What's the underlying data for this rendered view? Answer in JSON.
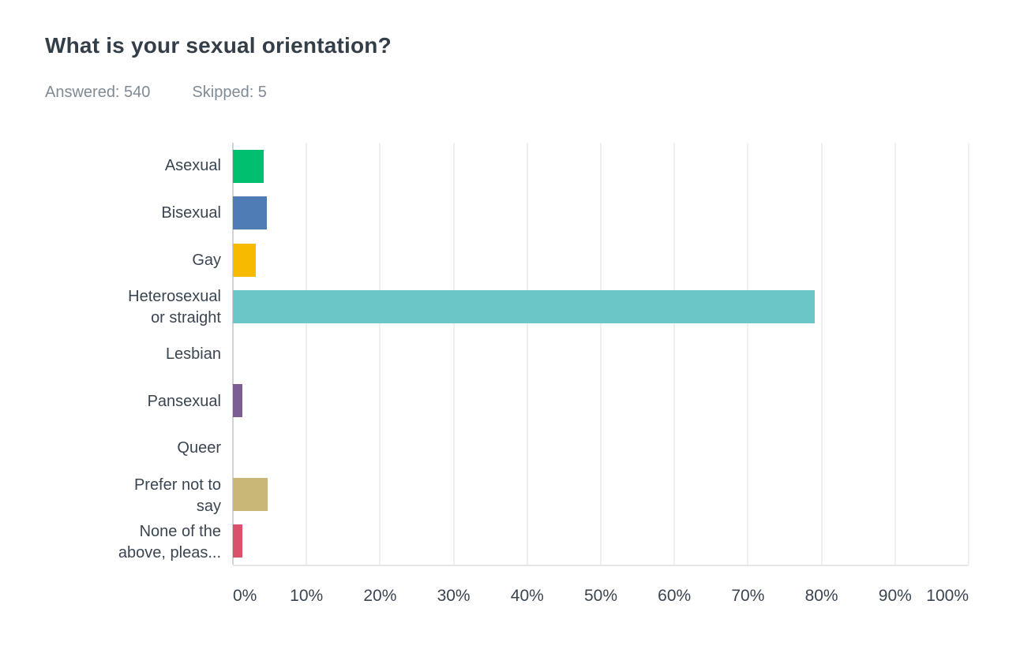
{
  "header": {
    "title": "What is your sexual orientation?",
    "answered": "Answered: 540",
    "skipped": "Skipped: 5"
  },
  "chart_data": {
    "type": "bar",
    "orientation": "horizontal",
    "title": "What is your sexual orientation?",
    "answered_count": 540,
    "skipped_count": 5,
    "categories": [
      "Asexual",
      "Bisexual",
      "Gay",
      "Heterosexual\nor straight",
      "Lesbian",
      "Pansexual",
      "Queer",
      "Prefer not to\nsay",
      "None of the\nabove, pleas..."
    ],
    "values": [
      4.2,
      4.6,
      3.1,
      79.1,
      0,
      1.3,
      0,
      4.7,
      1.3
    ],
    "unit": "%",
    "bar_colors": [
      "#00BF6F",
      "#507CB6",
      "#F7BA00",
      "#6BC6C8",
      null,
      "#7C5E94",
      null,
      "#C9B778",
      "#D9516A"
    ],
    "x_ticks": [
      "0%",
      "10%",
      "20%",
      "30%",
      "40%",
      "50%",
      "60%",
      "70%",
      "80%",
      "90%",
      "100%"
    ],
    "xlim": [
      0,
      100
    ],
    "grid": "vertical-light",
    "legend": "none",
    "colors": {
      "title_text": "#333E48",
      "stats_text": "#7F8B95",
      "label_text": "#3A4551",
      "gridline": "#EFEFEF",
      "axis_line": "#D2D2D2",
      "baseline": "#E6E6E6"
    }
  }
}
